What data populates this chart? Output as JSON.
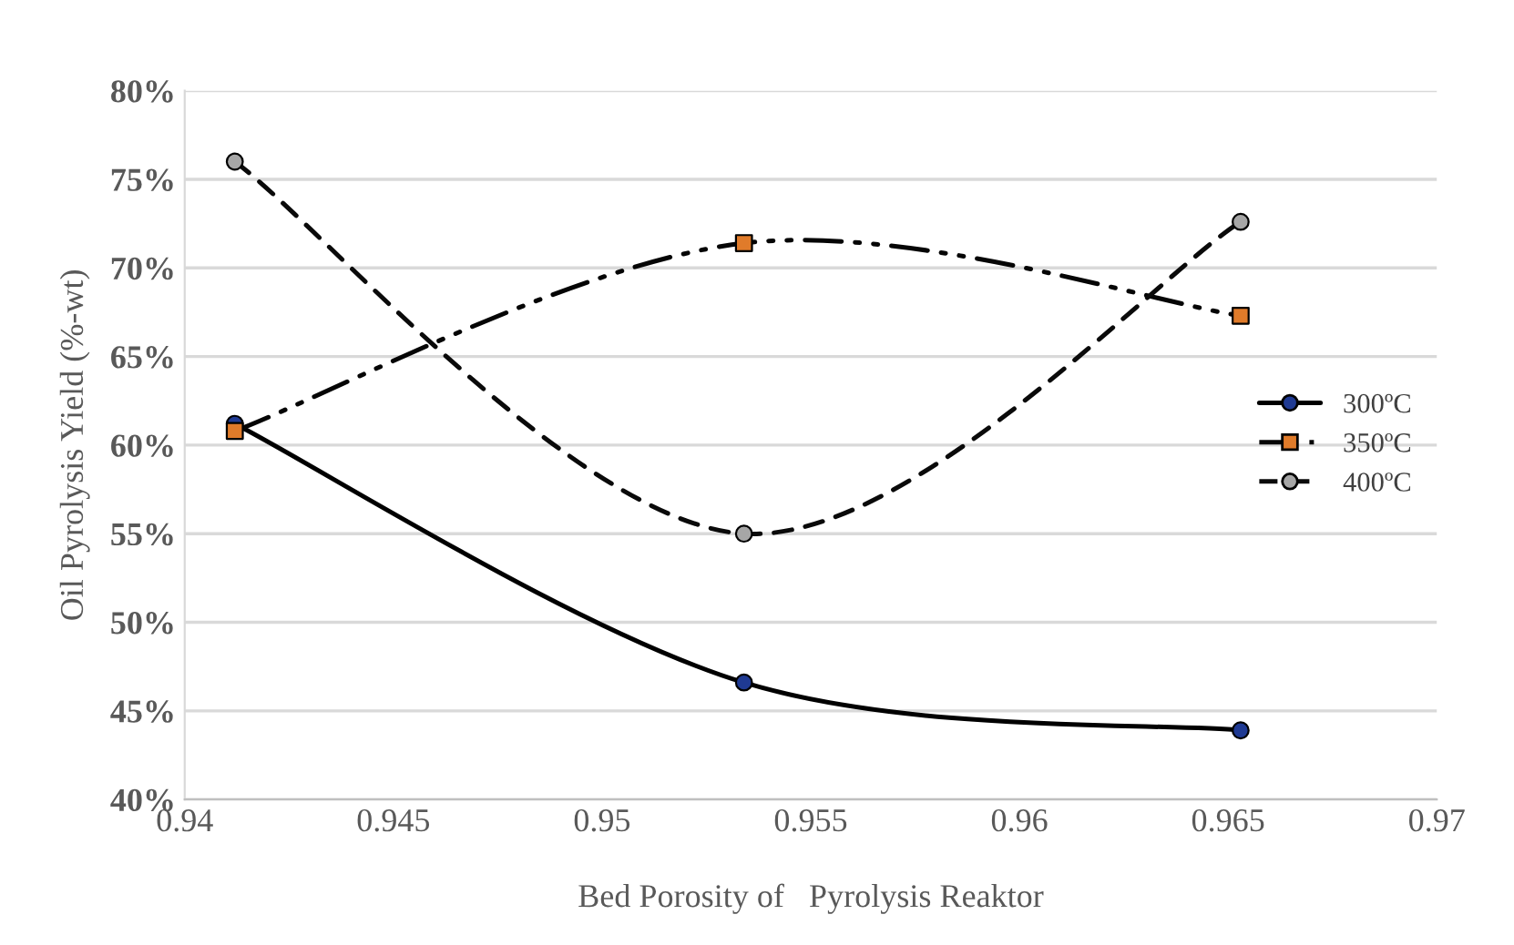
{
  "chart_data": {
    "type": "line",
    "xlabel": "Bed Porosity of   Pyrolysis Reaktor",
    "ylabel": "Oil Pyrolysis Yield (%-wt)",
    "series": [
      {
        "name": "300ºC",
        "color": "#000000",
        "colors": [
          "#1f3a93",
          "#1f3a93",
          "#1f3a93"
        ],
        "marker": "circle",
        "line_style": "solid",
        "x": [
          0.9412,
          0.9534,
          0.9653
        ],
        "values": [
          61.2,
          46.6,
          43.9
        ]
      },
      {
        "name": "350ºC",
        "color": "#050505",
        "colors": [
          "#e07b2a",
          "#e07b2a",
          "#e07b2a"
        ],
        "marker": "square",
        "line_style": "dashdotdot",
        "x": [
          0.9412,
          0.9534,
          0.9653
        ],
        "values": [
          60.8,
          71.4,
          67.3
        ]
      },
      {
        "name": "400ºC",
        "color": "#0a0a0a",
        "colors": [
          "#a6a6a6",
          "#a6a6a6",
          "#a6a6a6"
        ],
        "marker": "circle",
        "line_style": "dashed",
        "x": [
          0.9412,
          0.9534,
          0.9653
        ],
        "values": [
          76.0,
          55.0,
          72.6
        ]
      }
    ],
    "xlim": [
      0.94,
      0.97
    ],
    "xticks": [
      0.94,
      0.945,
      0.95,
      0.955,
      0.96,
      0.965,
      0.97
    ],
    "ylim": [
      40,
      80
    ],
    "yticks": [
      {
        "value": 40,
        "label": "40%"
      },
      {
        "value": 45,
        "label": "45%"
      },
      {
        "value": 50,
        "label": "50%"
      },
      {
        "value": 55,
        "label": "55%"
      },
      {
        "value": 60,
        "label": "60%"
      },
      {
        "value": 65,
        "label": "65%"
      },
      {
        "value": 70,
        "label": "70%"
      },
      {
        "value": 75,
        "label": "75%"
      },
      {
        "value": 80,
        "label": "80%"
      }
    ],
    "grid": "y",
    "legend": "right"
  }
}
